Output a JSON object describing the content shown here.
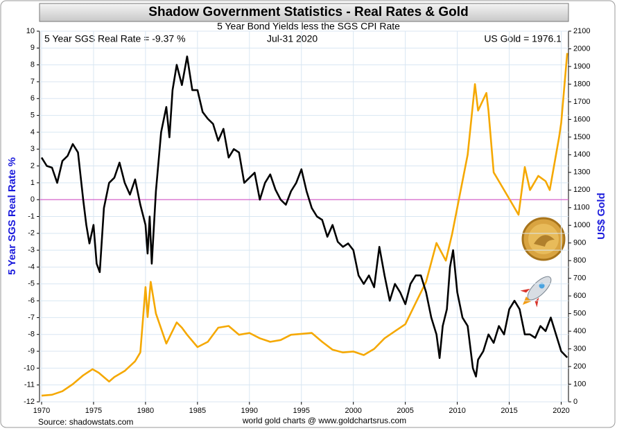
{
  "chart_data": {
    "type": "line",
    "title": "Shadow Government Statistics - Real Rates & Gold",
    "subtitle": "5 Year Bond Yields less the SGS CPI Rate",
    "annotations": [
      "5 Year SGS Real Rate = -9.37 %",
      "Jul-31  2020",
      "US Gold = 1976.1"
    ],
    "source": "Source: shadowstats.com",
    "credit": "world gold charts @ www.goldchartsrus.com",
    "ylabel": "5 Year SGS Real Rate %",
    "y2label": "US$ Gold",
    "xlim": [
      1969.8,
      2020.7
    ],
    "xticks": [
      1970,
      1975,
      1980,
      1985,
      1990,
      1995,
      2000,
      2005,
      2010,
      2015,
      2020
    ],
    "ylim": [
      -12,
      10
    ],
    "yticks": [
      -12,
      -11,
      -10,
      -9,
      -8,
      -7,
      -6,
      -5,
      -4,
      -3,
      -2,
      -1,
      0,
      1,
      2,
      3,
      4,
      5,
      6,
      7,
      8,
      9,
      10
    ],
    "y2lim": [
      0,
      2100
    ],
    "y2ticks": [
      0,
      100,
      200,
      300,
      400,
      500,
      600,
      700,
      800,
      900,
      1000,
      1100,
      1200,
      1300,
      1400,
      1500,
      1600,
      1700,
      1800,
      1900,
      2000,
      2100
    ],
    "grid": true,
    "zero_line_color": "#d040c0",
    "series": [
      {
        "name": "5 Year SGS Real Rate",
        "color": "#000000",
        "x": [
          1970,
          1970.5,
          1971,
          1971.5,
          1972,
          1972.5,
          1973,
          1973.5,
          1974,
          1974.3,
          1974.6,
          1975,
          1975.3,
          1975.6,
          1976,
          1976.5,
          1977,
          1977.5,
          1978,
          1978.5,
          1979,
          1979.5,
          1980,
          1980.2,
          1980.4,
          1980.6,
          1981,
          1981.5,
          1982,
          1982.3,
          1982.6,
          1983,
          1983.5,
          1984,
          1984.5,
          1985,
          1985.5,
          1986,
          1986.5,
          1987,
          1987.5,
          1988,
          1988.5,
          1989,
          1989.5,
          1990,
          1990.5,
          1991,
          1991.5,
          1992,
          1992.5,
          1993,
          1993.5,
          1994,
          1994.5,
          1995,
          1995.5,
          1996,
          1996.5,
          1997,
          1997.5,
          1998,
          1998.5,
          1999,
          1999.5,
          2000,
          2000.5,
          2001,
          2001.5,
          2002,
          2002.5,
          2003,
          2003.5,
          2004,
          2004.5,
          2005,
          2005.5,
          2006,
          2006.5,
          2007,
          2007.5,
          2008,
          2008.3,
          2008.6,
          2009,
          2009.3,
          2009.6,
          2010,
          2010.5,
          2011,
          2011.5,
          2011.8,
          2012,
          2012.5,
          2013,
          2013.5,
          2014,
          2014.5,
          2015,
          2015.5,
          2016,
          2016.5,
          2017,
          2017.5,
          2018,
          2018.5,
          2019,
          2019.5,
          2020,
          2020.58
        ],
        "values": [
          2.5,
          2.0,
          1.9,
          1.0,
          2.3,
          2.6,
          3.3,
          2.8,
          0.0,
          -1.5,
          -2.6,
          -1.5,
          -3.8,
          -4.3,
          -0.5,
          1.0,
          1.3,
          2.2,
          1.0,
          0.3,
          1.2,
          -0.3,
          -1.5,
          -3.2,
          -1.0,
          -3.8,
          0.5,
          4.0,
          5.5,
          3.7,
          6.5,
          8.0,
          6.8,
          8.5,
          6.5,
          6.5,
          5.2,
          4.8,
          4.5,
          3.5,
          4.2,
          2.5,
          3.0,
          2.8,
          1.0,
          1.3,
          1.6,
          0.0,
          1.0,
          1.5,
          0.6,
          0.0,
          -0.3,
          0.5,
          1.0,
          1.8,
          0.5,
          -0.5,
          -1.0,
          -1.2,
          -2.2,
          -1.5,
          -2.5,
          -2.8,
          -2.6,
          -3.0,
          -4.5,
          -5.0,
          -4.5,
          -5.2,
          -2.8,
          -4.5,
          -6.0,
          -5.0,
          -5.5,
          -6.2,
          -5.0,
          -4.5,
          -4.5,
          -5.5,
          -7.0,
          -8.0,
          -9.4,
          -7.5,
          -6.5,
          -4.0,
          -3.0,
          -5.5,
          -7.0,
          -7.5,
          -10.0,
          -10.5,
          -9.5,
          -9.0,
          -8.0,
          -8.5,
          -7.5,
          -8.0,
          -6.5,
          -6.0,
          -6.5,
          -8.0,
          -8.0,
          -8.2,
          -7.5,
          -7.8,
          -7.0,
          -8.0,
          -9.0,
          -9.37
        ]
      },
      {
        "name": "US Gold",
        "color": "#f5a800",
        "axis": "y2",
        "x": [
          1970,
          1971,
          1972,
          1973,
          1974,
          1974.9,
          1975.5,
          1976.5,
          1977,
          1978,
          1979,
          1979.5,
          1980,
          1980.2,
          1980.5,
          1981,
          1982,
          1983,
          1983.5,
          1984,
          1985,
          1986,
          1987,
          1988,
          1989,
          1990,
          1991,
          1992,
          1993,
          1994,
          1995,
          1996,
          1997,
          1998,
          1999,
          2000,
          2001,
          2002,
          2003,
          2004,
          2005,
          2006,
          2007,
          2008,
          2008.9,
          2009.5,
          2010,
          2010.5,
          2011,
          2011.7,
          2012,
          2012.8,
          2013,
          2013.5,
          2014,
          2015,
          2015.9,
          2016.5,
          2017,
          2017.8,
          2018.5,
          2018.9,
          2019.5,
          2019.8,
          2020,
          2020.58
        ],
        "values": [
          35,
          40,
          60,
          100,
          150,
          185,
          165,
          115,
          140,
          175,
          230,
          280,
          650,
          480,
          680,
          500,
          330,
          450,
          420,
          380,
          310,
          340,
          420,
          430,
          380,
          390,
          360,
          340,
          350,
          380,
          385,
          390,
          340,
          295,
          280,
          285,
          265,
          300,
          360,
          400,
          440,
          560,
          680,
          900,
          800,
          950,
          1100,
          1250,
          1400,
          1800,
          1650,
          1750,
          1650,
          1300,
          1250,
          1150,
          1060,
          1330,
          1200,
          1280,
          1250,
          1200,
          1400,
          1500,
          1580,
          1976
        ]
      }
    ]
  }
}
